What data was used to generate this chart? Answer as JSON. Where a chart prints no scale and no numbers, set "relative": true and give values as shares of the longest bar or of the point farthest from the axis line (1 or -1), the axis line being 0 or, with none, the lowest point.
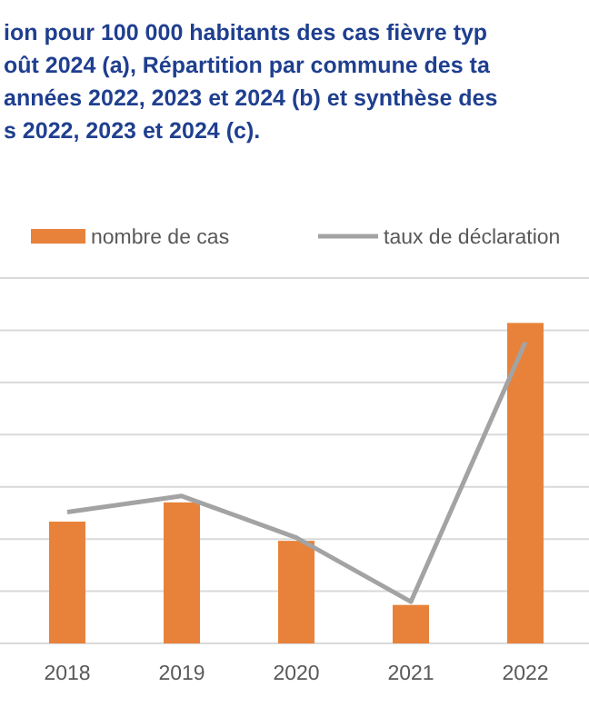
{
  "chart_data": {
    "type": "bar",
    "title": "ion pour 100 000 habitants des cas fièvre typ\noût 2024 (a), Répartition par commune des ta\nannées 2022, 2023 et 2024 (b) et synthèse des\ns 2022, 2023 et 2024 (c).",
    "categories": [
      "2018",
      "2019",
      "2020",
      "2021",
      "2022"
    ],
    "relative": true,
    "grid": "y",
    "legend": "top",
    "series": [
      {
        "name": "nombre de cas",
        "color": "#e8823a",
        "values": [
          0.38,
          0.44,
          0.32,
          0.12,
          1
        ]
      },
      {
        "name": "taux de déclaration",
        "type": "line",
        "color": "#a3a3a3",
        "values": [
          0.41,
          0.46,
          0.33,
          0.13,
          0.94
        ]
      }
    ]
  }
}
